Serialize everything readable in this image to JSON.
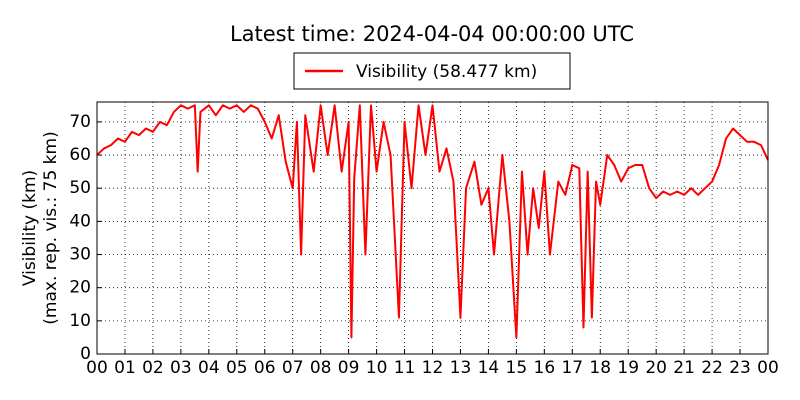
{
  "chart_data": {
    "type": "line",
    "title": "Latest time: 2024-04-04 00:00:00 UTC",
    "y_label": [
      "Visibility (km)",
      "(max. rep. vis.: 75 km)"
    ],
    "x": [
      0,
      0.25,
      0.5,
      0.75,
      1,
      1.25,
      1.5,
      1.75,
      2,
      2.25,
      2.5,
      2.75,
      3,
      3.25,
      3.5,
      3.6,
      3.7,
      4,
      4.25,
      4.5,
      4.75,
      5,
      5.25,
      5.5,
      5.75,
      6,
      6.25,
      6.5,
      6.75,
      7,
      7.15,
      7.3,
      7.45,
      7.75,
      8,
      8.25,
      8.5,
      8.75,
      9,
      9.1,
      9.2,
      9.4,
      9.6,
      9.8,
      10,
      10.25,
      10.5,
      10.8,
      11,
      11.25,
      11.5,
      11.75,
      12,
      12.25,
      12.5,
      12.75,
      13,
      13.2,
      13.5,
      13.75,
      14,
      14.2,
      14.5,
      14.75,
      15,
      15.2,
      15.4,
      15.6,
      15.8,
      16,
      16.2,
      16.5,
      16.75,
      17,
      17.25,
      17.4,
      17.55,
      17.7,
      17.85,
      18,
      18.25,
      18.5,
      18.75,
      19,
      19.25,
      19.5,
      19.75,
      20,
      20.25,
      20.5,
      20.75,
      21,
      21.25,
      21.5,
      21.75,
      22,
      22.25,
      22.5,
      22.75,
      23,
      23.25,
      23.5,
      23.75,
      24
    ],
    "series": [
      {
        "name": "Visibility (58.477 km)",
        "color": "#ff0000",
        "values": [
          60,
          62,
          63,
          65,
          64,
          67,
          66,
          68,
          67,
          70,
          69,
          73,
          75,
          74,
          75,
          55,
          73,
          75,
          72,
          75,
          74,
          75,
          73,
          75,
          74,
          70,
          65,
          72,
          58,
          50,
          70,
          30,
          72,
          55,
          75,
          60,
          75,
          55,
          70,
          5,
          53,
          75,
          30,
          75,
          55,
          70,
          60,
          11,
          70,
          50,
          75,
          60,
          75,
          55,
          62,
          52,
          11,
          50,
          58,
          45,
          50,
          30,
          60,
          40,
          5,
          55,
          30,
          50,
          38,
          55,
          30,
          52,
          48,
          57,
          56,
          8,
          55,
          11,
          52,
          45,
          60,
          57,
          52,
          56,
          57,
          57,
          50,
          47,
          49,
          48,
          49,
          48,
          50,
          48,
          50,
          52,
          57,
          65,
          68,
          66,
          64,
          64,
          63,
          58.5
        ]
      }
    ],
    "xlim": [
      0,
      24
    ],
    "xticks": [
      {
        "value": 0,
        "label": "00"
      },
      {
        "value": 1,
        "label": "01"
      },
      {
        "value": 2,
        "label": "02"
      },
      {
        "value": 3,
        "label": "03"
      },
      {
        "value": 4,
        "label": "04"
      },
      {
        "value": 5,
        "label": "05"
      },
      {
        "value": 6,
        "label": "06"
      },
      {
        "value": 7,
        "label": "07"
      },
      {
        "value": 8,
        "label": "08"
      },
      {
        "value": 9,
        "label": "09"
      },
      {
        "value": 10,
        "label": "10"
      },
      {
        "value": 11,
        "label": "11"
      },
      {
        "value": 12,
        "label": "12"
      },
      {
        "value": 13,
        "label": "13"
      },
      {
        "value": 14,
        "label": "14"
      },
      {
        "value": 15,
        "label": "15"
      },
      {
        "value": 16,
        "label": "16"
      },
      {
        "value": 17,
        "label": "17"
      },
      {
        "value": 18,
        "label": "18"
      },
      {
        "value": 19,
        "label": "19"
      },
      {
        "value": 20,
        "label": "20"
      },
      {
        "value": 21,
        "label": "21"
      },
      {
        "value": 22,
        "label": "22"
      },
      {
        "value": 23,
        "label": "23"
      },
      {
        "value": 24,
        "label": "00"
      }
    ],
    "ylim": [
      0,
      76
    ],
    "yticks": [
      0,
      10,
      20,
      30,
      40,
      50,
      60,
      70
    ],
    "grid": true
  }
}
